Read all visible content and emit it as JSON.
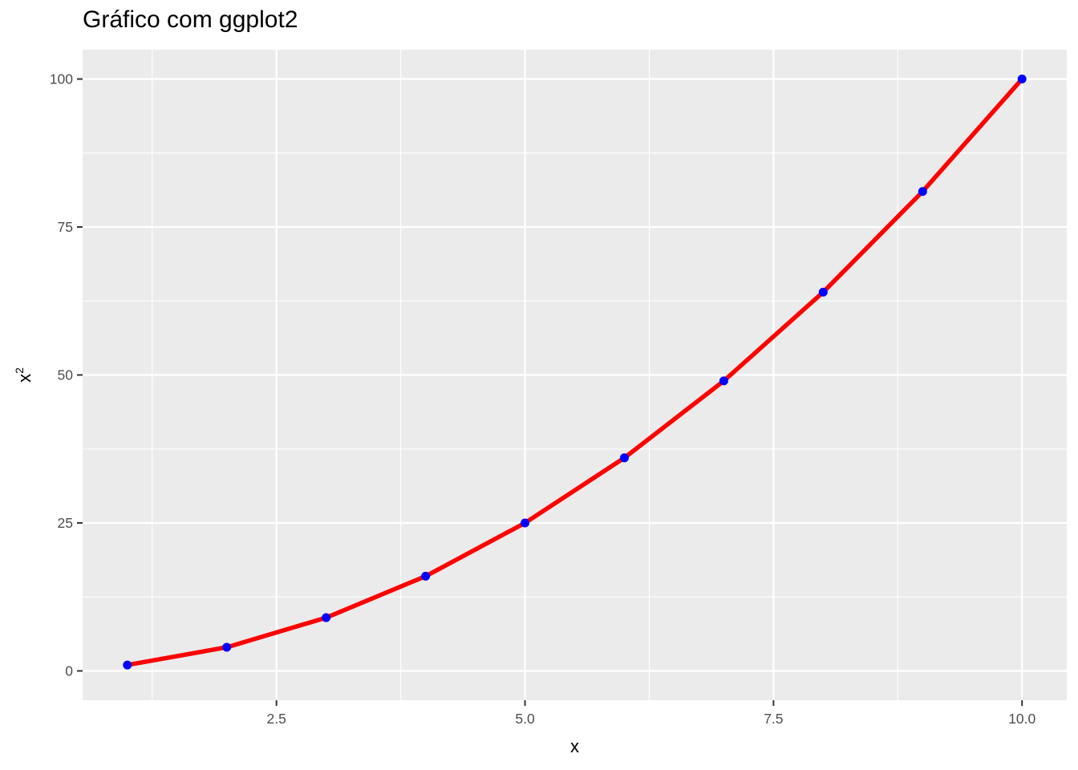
{
  "chart_data": {
    "type": "line",
    "title": "Gráfico com ggplot2",
    "xlabel": "x",
    "ylabel": "x",
    "ylabel_superscript": "2",
    "x": [
      1,
      2,
      3,
      4,
      5,
      6,
      7,
      8,
      9,
      10
    ],
    "series": [
      {
        "values": [
          1,
          4,
          9,
          16,
          25,
          36,
          49,
          64,
          81,
          100
        ]
      }
    ],
    "xlim": [
      0.55,
      10.45
    ],
    "ylim": [
      -4.95,
      104.95
    ],
    "x_major_ticks": [
      2.5,
      5.0,
      7.5,
      10.0
    ],
    "x_tick_labels": [
      "2.5",
      "5.0",
      "7.5",
      "10.0"
    ],
    "x_minor_ticks": [
      1.25,
      3.75,
      6.25,
      8.75
    ],
    "y_major_ticks": [
      0,
      25,
      50,
      75,
      100
    ],
    "y_tick_labels": [
      "0",
      "25",
      "50",
      "75",
      "100"
    ],
    "y_minor_ticks": [
      12.5,
      37.5,
      62.5,
      87.5
    ],
    "grid": true,
    "colors": {
      "panel_background": "#ebebeb",
      "grid": "#ffffff",
      "line": "#ff0000",
      "points": "#0000ff",
      "tick_text": "#4d4d4d",
      "tick_mark": "#333333"
    }
  }
}
